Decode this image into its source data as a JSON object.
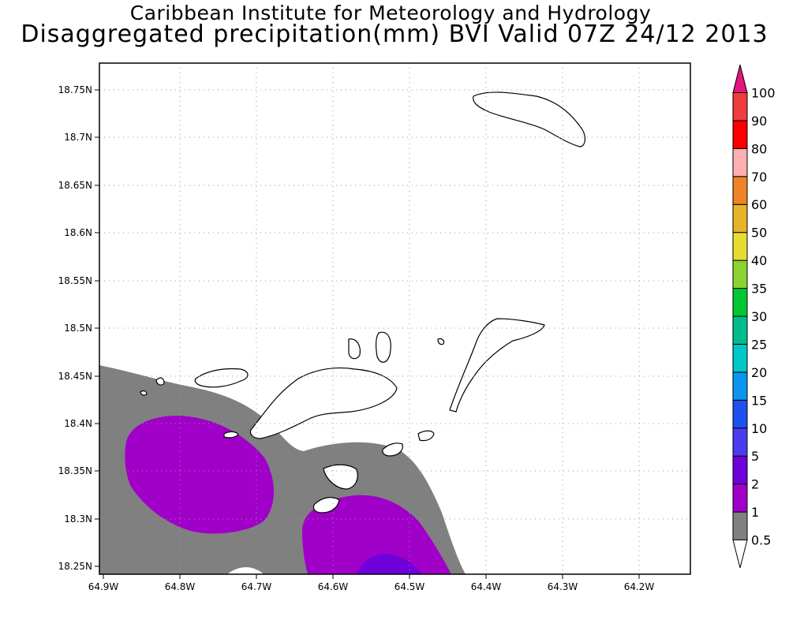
{
  "chart_data": {
    "type": "heatmap",
    "title": "Caribbean Institute for Meteorology and Hydrology",
    "subtitle": "Disaggregated precipitation(mm) BVI Valid 07Z 24/12 2013",
    "x_ticks": [
      "64.9W",
      "64.8W",
      "64.7W",
      "64.6W",
      "64.5W",
      "64.4W",
      "64.3W",
      "64.2W"
    ],
    "y_ticks": [
      "18.25N",
      "18.3N",
      "18.35N",
      "18.4N",
      "18.45N",
      "18.5N",
      "18.55N",
      "18.6N",
      "18.65N",
      "18.7N",
      "18.75N"
    ],
    "xlim": [
      -64.905,
      -64.13
    ],
    "ylim": [
      18.245,
      18.773
    ],
    "grid": true,
    "colorbar": {
      "levels": [
        "0.5",
        "1",
        "2",
        "5",
        "10",
        "15",
        "20",
        "25",
        "30",
        "35",
        "40",
        "50",
        "60",
        "70",
        "80",
        "90",
        "100"
      ],
      "colors": [
        "#ffffff",
        "#808080",
        "#a000c8",
        "#6e00dc",
        "#4b3cf0",
        "#1e50f0",
        "#0a96f0",
        "#00c8c8",
        "#00be8c",
        "#00c832",
        "#8cd232",
        "#e6dc32",
        "#e6b428",
        "#f08228",
        "#ffafaf",
        "#fa0000",
        "#f03c3c",
        "#e6147d"
      ]
    },
    "precip_regions": [
      {
        "range": "0.5-1",
        "color": "#808080"
      },
      {
        "range": "1-2",
        "color": "#a000c8"
      },
      {
        "range": "2-5",
        "color": "#6e00dc"
      }
    ]
  }
}
